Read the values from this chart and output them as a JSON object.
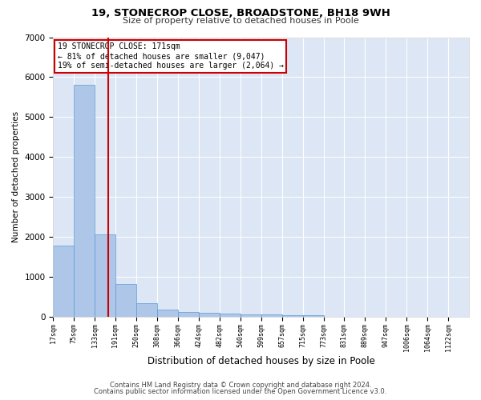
{
  "title1": "19, STONECROP CLOSE, BROADSTONE, BH18 9WH",
  "title2": "Size of property relative to detached houses in Poole",
  "xlabel": "Distribution of detached houses by size in Poole",
  "ylabel": "Number of detached properties",
  "bar_color": "#aec6e8",
  "bar_edge_color": "#5b9bd5",
  "background_color": "#dce6f5",
  "grid_color": "#ffffff",
  "fig_background": "#ffffff",
  "vline_color": "#cc0000",
  "vline_x": 171,
  "bin_edges": [
    17,
    75,
    133,
    191,
    250,
    308,
    366,
    424,
    482,
    540,
    599,
    657,
    715,
    773,
    831,
    889,
    947,
    1006,
    1064,
    1122,
    1180
  ],
  "bar_heights": [
    1780,
    5800,
    2060,
    830,
    350,
    190,
    120,
    100,
    95,
    70,
    70,
    50,
    40,
    10,
    5,
    3,
    2,
    1,
    1,
    1
  ],
  "ylim": [
    0,
    7000
  ],
  "yticks": [
    0,
    1000,
    2000,
    3000,
    4000,
    5000,
    6000,
    7000
  ],
  "annotation_text": "19 STONECROP CLOSE: 171sqm\n← 81% of detached houses are smaller (9,047)\n19% of semi-detached houses are larger (2,064) →",
  "annotation_box_color": "#ffffff",
  "annotation_box_edge": "#cc0000",
  "footer1": "Contains HM Land Registry data © Crown copyright and database right 2024.",
  "footer2": "Contains public sector information licensed under the Open Government Licence v3.0."
}
